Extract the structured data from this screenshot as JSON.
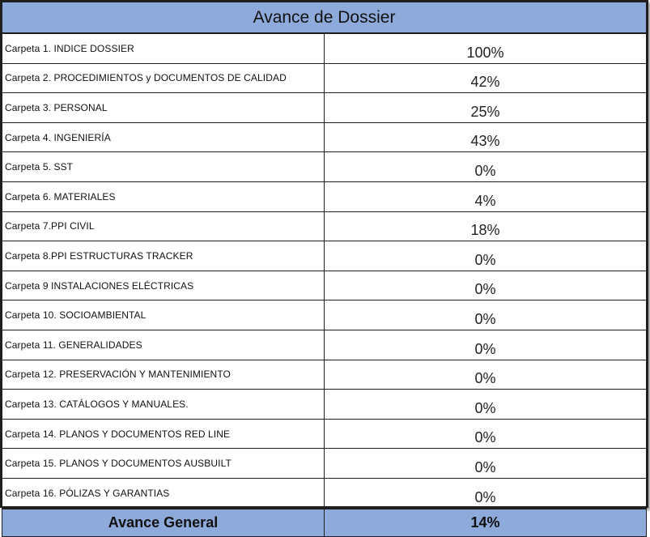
{
  "title": "Avance de Dossier",
  "rows": [
    {
      "label": "Carpeta 1. INDICE DOSSIER",
      "value": "100%"
    },
    {
      "label": "Carpeta 2. PROCEDIMIENTOS y DOCUMENTOS DE CALIDAD",
      "value": "42%"
    },
    {
      "label": "Carpeta 3. PERSONAL",
      "value": "25%"
    },
    {
      "label": "Carpeta 4. INGENIERÍA",
      "value": "43%"
    },
    {
      "label": "Carpeta 5. SST",
      "value": "0%"
    },
    {
      "label": "Carpeta 6. MATERIALES",
      "value": "4%"
    },
    {
      "label": "Carpeta 7.PPI  CIVIL",
      "value": "18%"
    },
    {
      "label": "Carpeta  8.PPI  ESTRUCTURAS TRACKER",
      "value": "0%"
    },
    {
      "label": "Carpeta 9  INSTALACIONES ELÉCTRICAS",
      "value": "0%"
    },
    {
      "label": "Carpeta 10. SOCIOAMBIENTAL",
      "value": "0%"
    },
    {
      "label": "Carpeta  11. GENERALIDADES",
      "value": "0%"
    },
    {
      "label": "Carpeta  12. PRESERVACIÓN Y MANTENIMIENTO",
      "value": "0%"
    },
    {
      "label": "Carpeta  13. CATÁLOGOS Y MANUALES.",
      "value": "0%"
    },
    {
      "label": "Carpeta 14. PLANOS Y DOCUMENTOS RED LINE",
      "value": "0%"
    },
    {
      "label": "Carpeta  15. PLANOS Y DOCUMENTOS AUSBUILT",
      "value": "0%"
    },
    {
      "label": "Carpeta 16. PÓLIZAS Y  GARANTIAS",
      "value": "0%"
    }
  ],
  "footer": {
    "label": "Avance General",
    "value": "14%"
  },
  "colors": {
    "header_fill": "#8eaadb",
    "border": "#1f1f1f"
  }
}
